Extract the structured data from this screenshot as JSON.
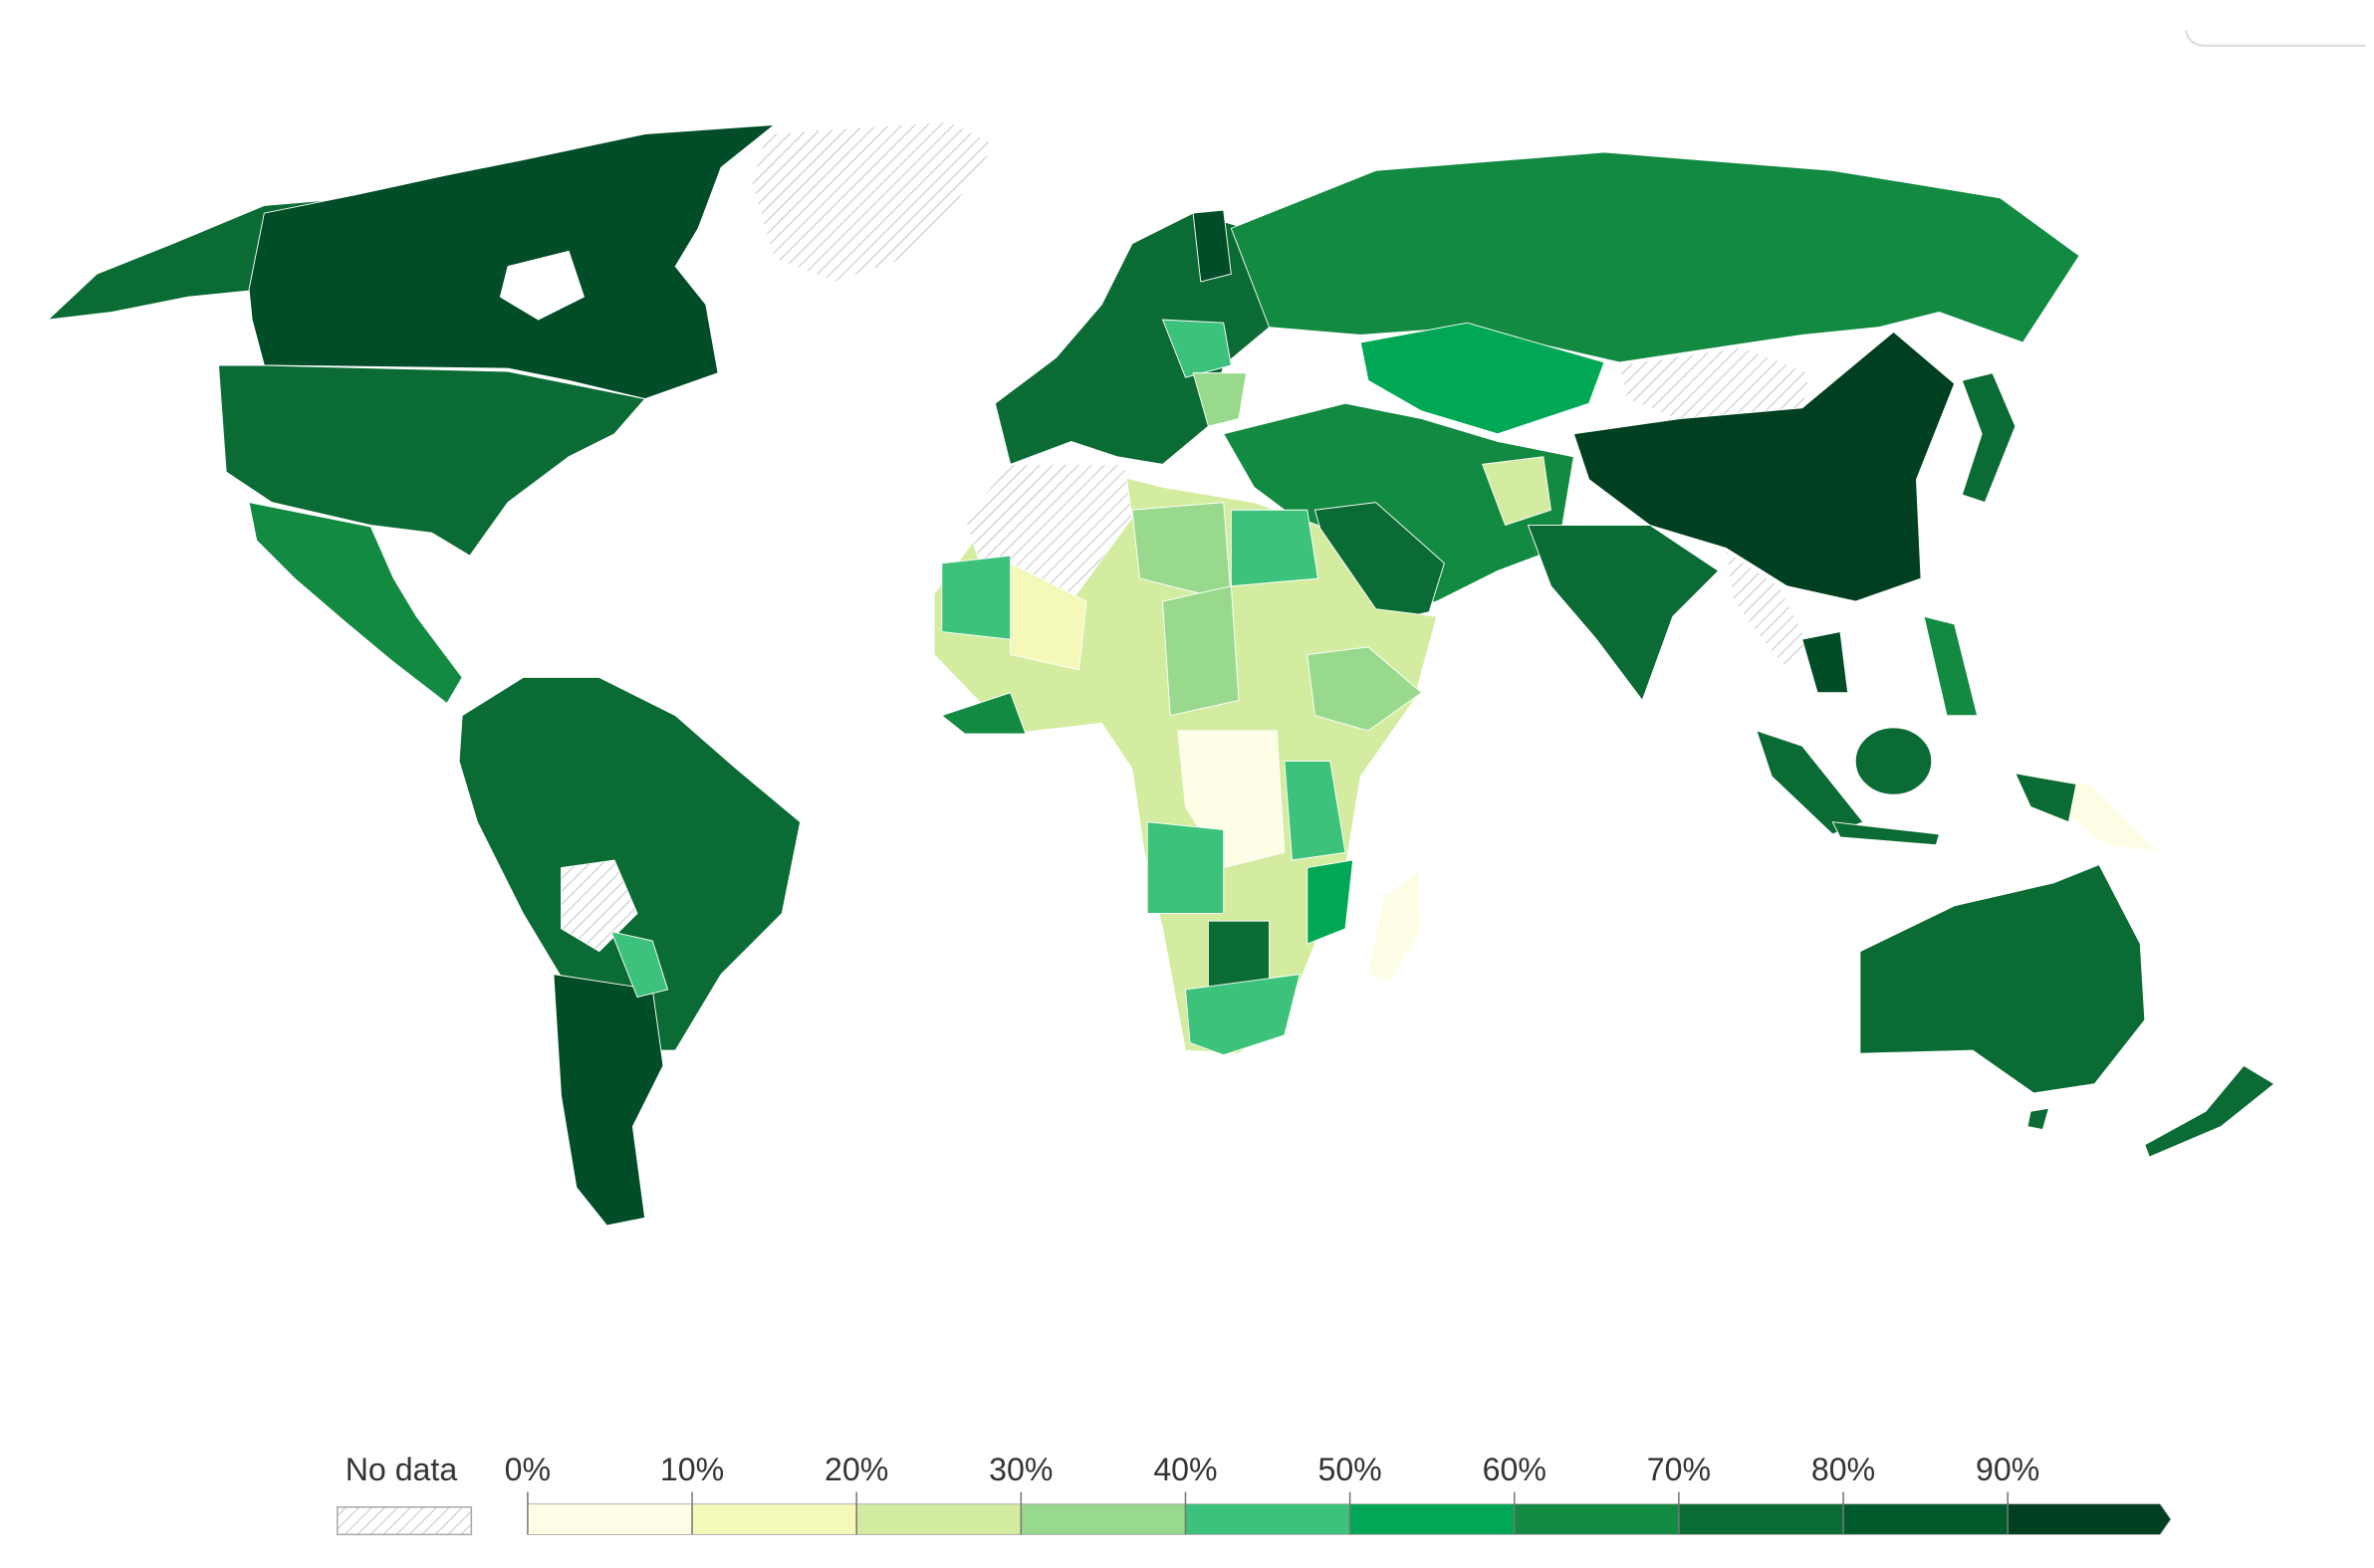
{
  "legend": {
    "no_data": "No data",
    "ticks": [
      {
        "value": 0,
        "label": "0%"
      },
      {
        "value": 10,
        "label": "10%"
      },
      {
        "value": 20,
        "label": "20%"
      },
      {
        "value": 30,
        "label": "30%"
      },
      {
        "value": 40,
        "label": "40%"
      },
      {
        "value": 50,
        "label": "50%"
      },
      {
        "value": 60,
        "label": "60%"
      },
      {
        "value": 70,
        "label": "70%"
      },
      {
        "value": 80,
        "label": "80%"
      },
      {
        "value": 90,
        "label": "90%"
      }
    ],
    "colors": [
      "#fefde6",
      "#f4f8b8",
      "#d4eca0",
      "#98d98e",
      "#3cc27a",
      "#00a855",
      "#138a42",
      "#0b6b34",
      "#005a2c",
      "#003f20"
    ]
  }
}
